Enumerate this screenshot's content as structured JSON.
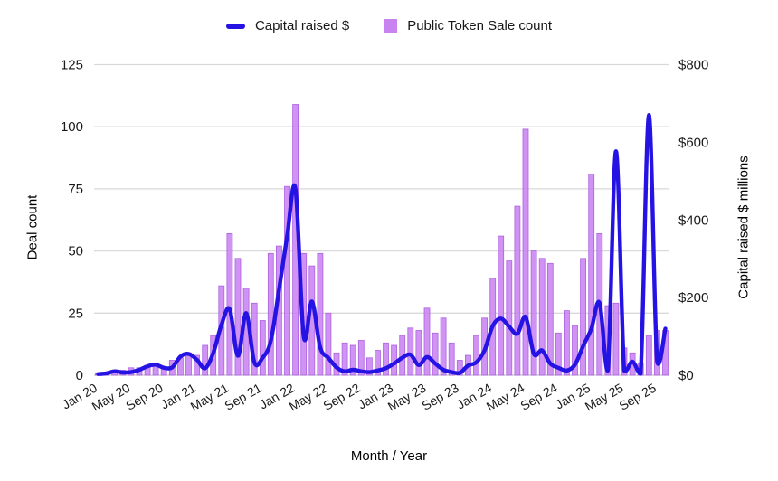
{
  "legend": {
    "items": [
      {
        "label": "Capital raised $",
        "swatch": "line",
        "color": "#2413e2"
      },
      {
        "label": "Public Token Sale count",
        "swatch": "square",
        "color": "#c983f1"
      }
    ]
  },
  "axes": {
    "left_title": "Deal count",
    "right_title": "Capital raised $ millions",
    "x_title": "Month / Year",
    "left_ticks": [
      0,
      25,
      50,
      75,
      100,
      125
    ],
    "right_ticks": [
      "$0",
      "$200",
      "$400",
      "$600",
      "$800"
    ],
    "left_max": 125,
    "right_max": 800
  },
  "colors": {
    "line": "#2413e2",
    "bar_fill": "#c983f1",
    "bar_stroke": "#ad63e2",
    "grid": "#d9d9d9",
    "baseline": "#c6c6c6",
    "tick_text": "#1a1a1a"
  },
  "chart_data": {
    "type": "bar+line combo",
    "title": "",
    "xlabel": "Month / Year",
    "ylabel_left": "Deal count",
    "ylabel_right": "Capital raised $ millions",
    "y_left_range": [
      0,
      125
    ],
    "y_right_range": [
      0,
      800
    ],
    "grid": "horizontal",
    "legend_position": "top-center",
    "x": [
      "Jan 20",
      "Feb 20",
      "Mar 20",
      "Apr 20",
      "May 20",
      "Jun 20",
      "Jul 20",
      "Aug 20",
      "Sep 20",
      "Oct 20",
      "Nov 20",
      "Dec 20",
      "Jan 21",
      "Feb 21",
      "Mar 21",
      "Apr 21",
      "May 21",
      "Jun 21",
      "Jul 21",
      "Aug 21",
      "Sep 21",
      "Oct 21",
      "Nov 21",
      "Dec 21",
      "Jan 22",
      "Feb 22",
      "Mar 22",
      "Apr 22",
      "May 22",
      "Jun 22",
      "Jul 22",
      "Aug 22",
      "Sep 22",
      "Oct 22",
      "Nov 22",
      "Dec 22",
      "Jan 23",
      "Feb 23",
      "Mar 23",
      "Apr 23",
      "May 23",
      "Jun 23",
      "Jul 23",
      "Aug 23",
      "Sep 23",
      "Oct 23",
      "Nov 23",
      "Dec 23",
      "Jan 24",
      "Feb 24",
      "Mar 24",
      "Apr 24",
      "May 24",
      "Jun 24",
      "Jul 24",
      "Aug 24",
      "Sep 24",
      "Oct 24",
      "Nov 24",
      "Dec 24",
      "Jan 25",
      "Feb 25",
      "Mar 25",
      "Apr 25",
      "May 25",
      "Jun 25",
      "Jul 25",
      "Aug 25",
      "Sep 25",
      "Oct 25"
    ],
    "x_tick_labels": [
      "Jan 20",
      "May 20",
      "Sep 20",
      "Jan 21",
      "May 21",
      "Sep 21",
      "Jan 22",
      "May 22",
      "Sep 22",
      "Jan 23",
      "May 23",
      "Sep 23",
      "Jan 24",
      "May 24",
      "Sep 24",
      "Jan 25",
      "May 25",
      "Sep 25"
    ],
    "series": [
      {
        "name": "Public Token Sale count",
        "type": "bar",
        "axis": "left",
        "unit": "deals",
        "values": [
          1,
          1,
          2,
          2,
          3,
          3,
          4,
          5,
          3,
          6,
          7,
          9,
          8,
          12,
          16,
          36,
          57,
          47,
          35,
          29,
          22,
          49,
          52,
          76,
          109,
          49,
          44,
          49,
          25,
          9,
          13,
          12,
          14,
          7,
          10,
          13,
          12,
          16,
          19,
          18,
          27,
          17,
          23,
          13,
          6,
          8,
          16,
          23,
          39,
          56,
          46,
          68,
          99,
          50,
          47,
          45,
          17,
          26,
          20,
          47,
          81,
          57,
          28,
          29,
          11,
          9,
          5,
          16,
          18,
          18
        ]
      },
      {
        "name": "Capital raised $",
        "type": "line",
        "axis": "right",
        "unit": "$ millions",
        "values": [
          3,
          5,
          10,
          7,
          8,
          14,
          23,
          27,
          19,
          20,
          48,
          55,
          40,
          18,
          57,
          130,
          170,
          50,
          160,
          33,
          45,
          88,
          220,
          360,
          480,
          100,
          190,
          72,
          45,
          20,
          10,
          14,
          10,
          8,
          12,
          18,
          30,
          45,
          53,
          26,
          47,
          30,
          14,
          8,
          6,
          25,
          33,
          64,
          127,
          146,
          125,
          107,
          150,
          55,
          64,
          30,
          19,
          12,
          27,
          75,
          120,
          186,
          12,
          577,
          12,
          35,
          4,
          670,
          35,
          120
        ]
      }
    ]
  }
}
